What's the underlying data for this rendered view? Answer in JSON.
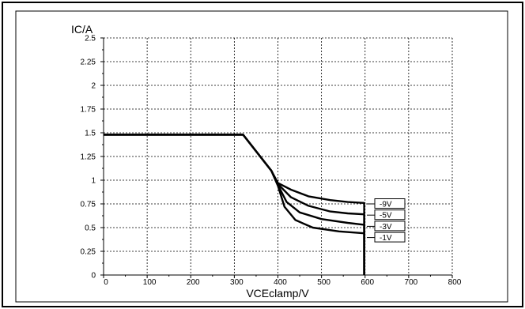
{
  "chart_data": {
    "type": "line",
    "title": "",
    "xlabel": "VCEclamp/V",
    "ylabel": "IC/A",
    "xlim": [
      0,
      800
    ],
    "ylim": [
      0,
      2.5
    ],
    "x_ticks": [
      "0",
      "100",
      "200",
      "300",
      "400",
      "500",
      "600",
      "700",
      "800"
    ],
    "y_ticks": [
      "0",
      "0.25",
      "0.5",
      "0.75",
      "1",
      "1.25",
      "1.5",
      "1.75",
      "2",
      "2.25",
      "2.5"
    ],
    "grid": true,
    "legend_placement": "right",
    "series": [
      {
        "name": "-9V",
        "x": [
          0,
          320,
          385,
          400,
          430,
          470,
          520,
          560,
          598,
          598
        ],
        "y": [
          1.48,
          1.48,
          1.1,
          0.97,
          0.9,
          0.83,
          0.79,
          0.77,
          0.76,
          0
        ]
      },
      {
        "name": "-5V",
        "x": [
          0,
          320,
          385,
          400,
          430,
          470,
          520,
          560,
          598,
          598
        ],
        "y": [
          1.48,
          1.48,
          1.1,
          0.96,
          0.82,
          0.73,
          0.67,
          0.65,
          0.64,
          0
        ]
      },
      {
        "name": "-3V",
        "x": [
          0,
          320,
          385,
          400,
          420,
          450,
          500,
          560,
          598,
          598
        ],
        "y": [
          1.48,
          1.48,
          1.1,
          0.95,
          0.77,
          0.66,
          0.59,
          0.55,
          0.53,
          0
        ]
      },
      {
        "name": "-1V",
        "x": [
          0,
          320,
          385,
          400,
          415,
          440,
          480,
          540,
          598,
          598
        ],
        "y": [
          1.48,
          1.48,
          1.1,
          0.94,
          0.72,
          0.58,
          0.5,
          0.46,
          0.44,
          0
        ]
      }
    ]
  }
}
